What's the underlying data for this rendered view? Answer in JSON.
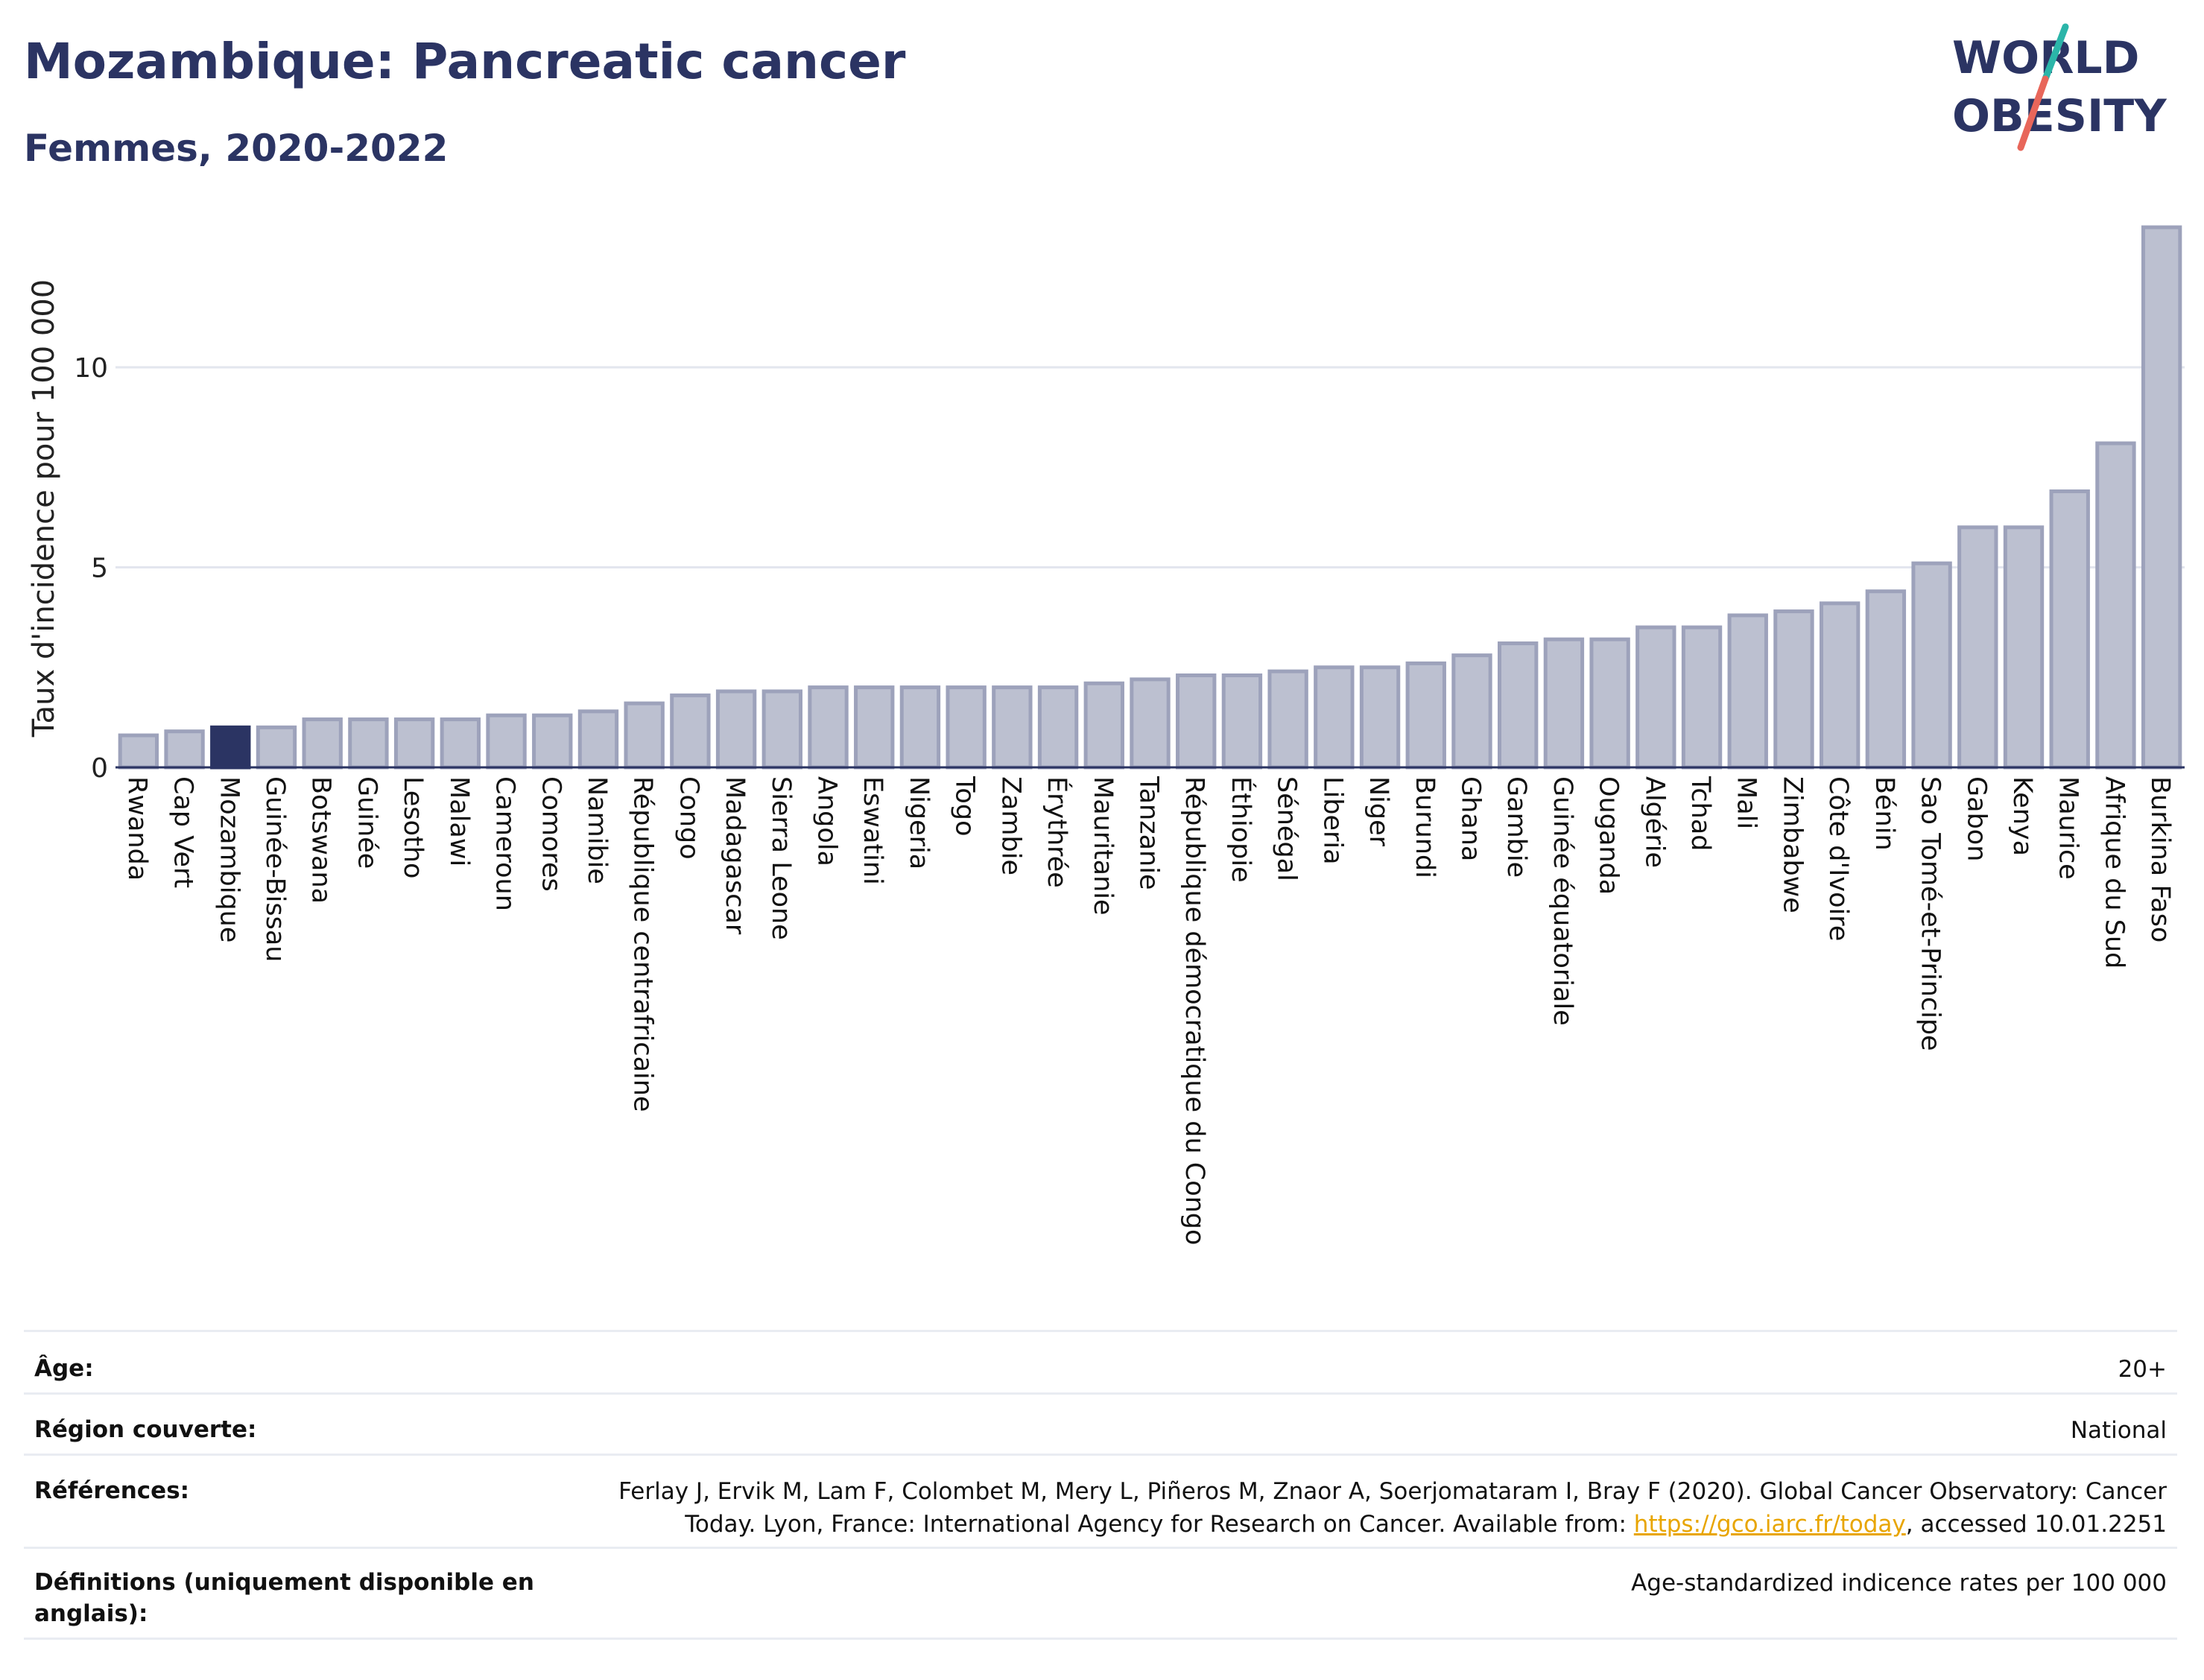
{
  "header": {
    "title": "Mozambique: Pancreatic cancer",
    "subtitle": "Femmes, 2020-2022"
  },
  "logo": {
    "line1": "WORLD",
    "line2": "OBESITY",
    "colors": {
      "text": "#2b3463",
      "slash_top": "#2bb5a9",
      "slash_bottom": "#e8665a"
    }
  },
  "colors": {
    "bar_fill": "#bcc0d0",
    "bar_stroke": "#9da2bb",
    "highlight": "#2b3463",
    "axis": "#2b3463",
    "grid": "#e3e6ee"
  },
  "chart_data": {
    "type": "bar",
    "ylabel": "Taux d'incidence pour 100 000",
    "ylim": [
      0,
      14
    ],
    "yticks": [
      0,
      5,
      10
    ],
    "grid": true,
    "highlight": "Mozambique",
    "categories": [
      "Rwanda",
      "Cap Vert",
      "Mozambique",
      "Guinée-Bissau",
      "Botswana",
      "Guinée",
      "Lesotho",
      "Malawi",
      "Cameroun",
      "Comores",
      "Namibie",
      "République centrafricaine",
      "Congo",
      "Madagascar",
      "Sierra Leone",
      "Angola",
      "Eswatini",
      "Nigeria",
      "Togo",
      "Zambie",
      "Érythrée",
      "Mauritanie",
      "Tanzanie",
      "République démocratique du Congo",
      "Éthiopie",
      "Sénégal",
      "Liberia",
      "Niger",
      "Burundi",
      "Ghana",
      "Gambie",
      "Guinée équatoriale",
      "Ouganda",
      "Algérie",
      "Tchad",
      "Mali",
      "Zimbabwe",
      "Côte d'Ivoire",
      "Bénin",
      "Sao Tomé-et-Principe",
      "Gabon",
      "Kenya",
      "Maurice",
      "Afrique du Sud",
      "Burkina Faso"
    ],
    "values": [
      0.8,
      0.9,
      1.0,
      1.0,
      1.2,
      1.2,
      1.2,
      1.2,
      1.3,
      1.3,
      1.4,
      1.6,
      1.8,
      1.9,
      1.9,
      2.0,
      2.0,
      2.0,
      2.0,
      2.0,
      2.0,
      2.1,
      2.2,
      2.3,
      2.3,
      2.4,
      2.5,
      2.5,
      2.6,
      2.8,
      3.1,
      3.2,
      3.2,
      3.5,
      3.5,
      3.8,
      3.9,
      4.1,
      4.4,
      5.1,
      6.0,
      6.0,
      6.9,
      8.1,
      13.5
    ]
  },
  "meta": {
    "rows": [
      {
        "label": "Âge:",
        "value": "20+"
      },
      {
        "label": "Région couverte:",
        "value": "National"
      },
      {
        "label": "Références:",
        "value_before": "Ferlay J, Ervik M, Lam F, Colombet M, Mery L, Piñeros M, Znaor A, Soerjomataram I, Bray F (2020). Global Cancer Observatory: Cancer Today. Lyon, France: International Agency for Research on Cancer. Available from: ",
        "link": "https://gco.iarc.fr/today",
        "value_after": ", accessed 10.01.2251"
      },
      {
        "label": "Définitions (uniquement disponible en anglais):",
        "value": "Age-standardized indicence rates per 100 000"
      }
    ]
  }
}
